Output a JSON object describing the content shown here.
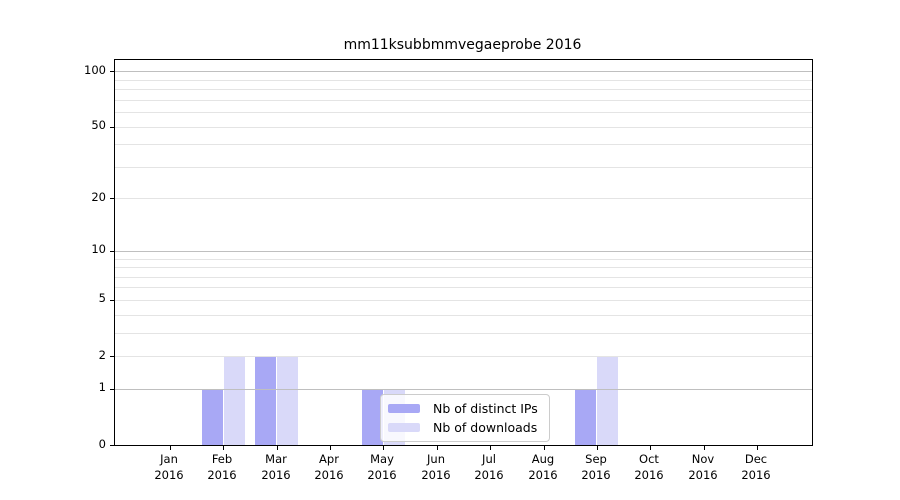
{
  "chart_data": {
    "type": "bar",
    "title": "mm11ksubbmmvegaeprobe 2016",
    "months": [
      "Jan",
      "Feb",
      "Mar",
      "Apr",
      "May",
      "Jun",
      "Jul",
      "Aug",
      "Sep",
      "Oct",
      "Nov",
      "Dec"
    ],
    "year": "2016",
    "series": [
      {
        "name": "Nb of distinct IPs",
        "color": "#a8a8f5",
        "values": [
          0,
          1,
          2,
          0,
          1,
          0,
          0,
          0,
          1,
          0,
          0,
          0
        ]
      },
      {
        "name": "Nb of downloads",
        "color": "#d9d9f9",
        "values": [
          0,
          2,
          2,
          0,
          1,
          0,
          0,
          0,
          2,
          0,
          0,
          0
        ]
      }
    ],
    "y_scale": "log10(1+v)",
    "ylim": [
      0,
      115
    ],
    "y_ticks": [
      {
        "label": "0",
        "value": 0
      },
      {
        "label": "1",
        "value": 1
      },
      {
        "label": "2",
        "value": 2
      },
      {
        "label": "5",
        "value": 5
      },
      {
        "label": "10",
        "value": 10
      },
      {
        "label": "20",
        "value": 20
      },
      {
        "label": "50",
        "value": 50
      },
      {
        "label": "100",
        "value": 100
      }
    ],
    "y_decade_lines": [
      1,
      10,
      100
    ],
    "y_minor_lines": [
      2,
      3,
      4,
      5,
      6,
      7,
      8,
      9,
      20,
      30,
      40,
      50,
      60,
      70,
      80,
      90
    ],
    "grid": true,
    "xlabel": "",
    "ylabel": "",
    "legend": {
      "position": "lower-center",
      "entries": [
        "Nb of distinct IPs",
        "Nb of downloads"
      ]
    }
  }
}
